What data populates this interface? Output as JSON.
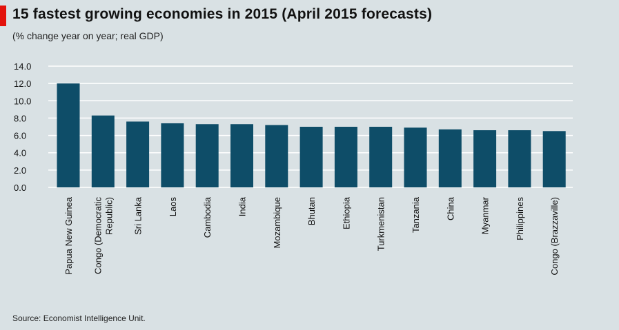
{
  "header": {
    "title": "15 fastest growing economies in 2015 (April 2015 forecasts)",
    "subtitle": "(% change year on year; real GDP)"
  },
  "footer": {
    "source": "Source: Economist Intelligence Unit."
  },
  "colors": {
    "background": "#d9e1e4",
    "bar": "#0e4d68",
    "gridline": "#ffffff",
    "accent": "#e3120b"
  },
  "chart_data": {
    "type": "bar",
    "title": "15 fastest growing economies in 2015 (April 2015 forecasts)",
    "subtitle": "(% change year on year; real GDP)",
    "ylim": [
      0,
      14
    ],
    "yticks": [
      "0.0",
      "2.0",
      "4.0",
      "6.0",
      "8.0",
      "10.0",
      "12.0",
      "14.0"
    ],
    "grid": true,
    "categories": [
      [
        "Papua New Guinea"
      ],
      [
        "Congo (Democratic",
        "Republic)"
      ],
      [
        "Sri Lanka"
      ],
      [
        "Laos"
      ],
      [
        "Cambodia"
      ],
      [
        "India"
      ],
      [
        "Mozambique"
      ],
      [
        "Bhutan"
      ],
      [
        "Ethiopia"
      ],
      [
        "Turkmenistan"
      ],
      [
        "Tanzania"
      ],
      [
        "China"
      ],
      [
        "Myanmar"
      ],
      [
        "Philippines"
      ],
      [
        "Congo (Brazzaville)"
      ]
    ],
    "values": [
      12.0,
      8.3,
      7.6,
      7.4,
      7.3,
      7.3,
      7.2,
      7.0,
      7.0,
      7.0,
      6.9,
      6.7,
      6.6,
      6.6,
      6.5
    ]
  }
}
